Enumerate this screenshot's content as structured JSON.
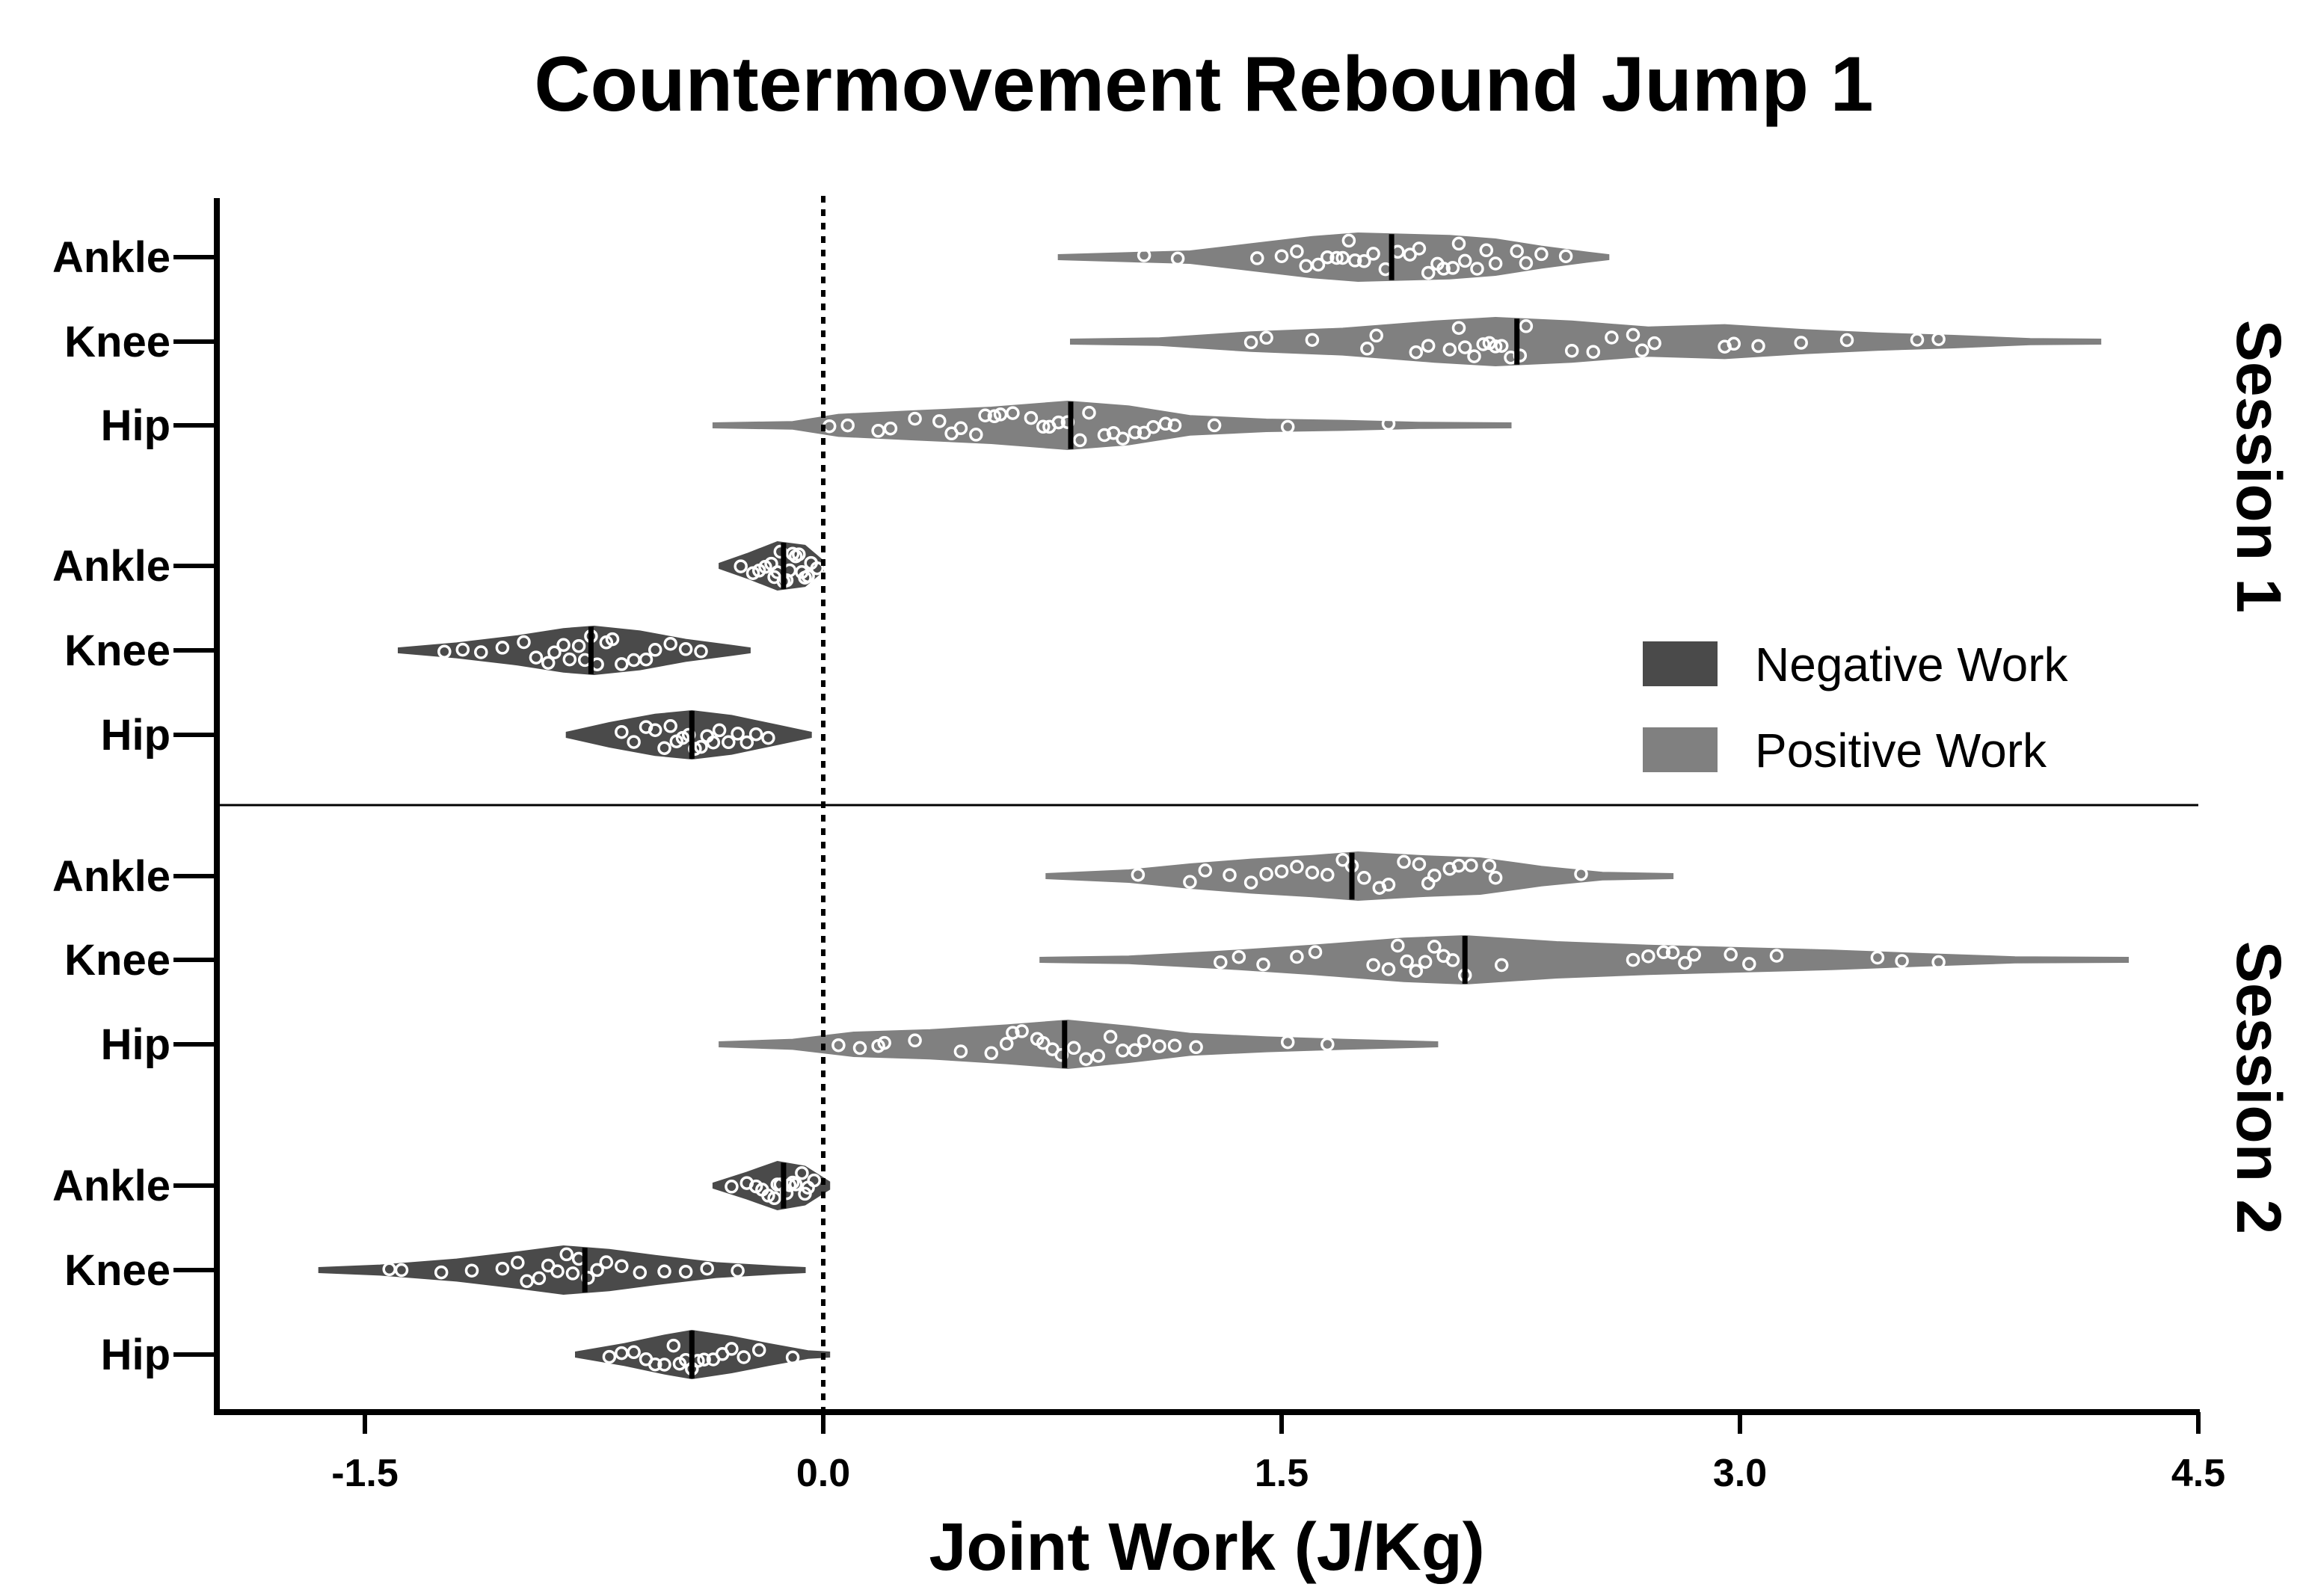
{
  "chart_data": {
    "type": "violin",
    "title": "Countermovement Rebound Jump 1",
    "xlabel": "Joint Work (J/Kg)",
    "xlim": [
      -2.0,
      4.5
    ],
    "xticks": [
      -1.5,
      0.0,
      1.5,
      3.0,
      4.5
    ],
    "xtick_labels": [
      "-1.5",
      "0.0",
      "1.5",
      "3.0",
      "4.5"
    ],
    "reference_line_x": 0.0,
    "reference_line_style": "dotted",
    "legend": {
      "placement": "right",
      "entries": [
        {
          "label": "Negative Work",
          "color": "#4a4a4a"
        },
        {
          "label": "Positive Work",
          "color": "#808080"
        }
      ]
    },
    "colors": {
      "negative": "#4a4a4a",
      "positive": "#808080",
      "points": "#ffffff",
      "median": "#000000"
    },
    "panels": [
      {
        "label": "Session 1",
        "groups": [
          {
            "joint": "Ankle",
            "work": "positive",
            "min": 0.77,
            "max": 2.57,
            "median": 1.86,
            "density": [
              [
                0.77,
                0.08
              ],
              [
                1.0,
                0.18
              ],
              [
                1.2,
                0.25
              ],
              [
                1.4,
                0.55
              ],
              [
                1.6,
                0.85
              ],
              [
                1.75,
                1.0
              ],
              [
                1.9,
                0.95
              ],
              [
                2.05,
                0.9
              ],
              [
                2.2,
                0.75
              ],
              [
                2.35,
                0.45
              ],
              [
                2.5,
                0.2
              ],
              [
                2.57,
                0.06
              ]
            ],
            "points": [
              1.05,
              1.16,
              1.42,
              1.5,
              1.55,
              1.58,
              1.62,
              1.65,
              1.68,
              1.7,
              1.72,
              1.74,
              1.77,
              1.8,
              1.84,
              1.88,
              1.92,
              1.95,
              1.98,
              2.01,
              2.03,
              2.06,
              2.08,
              2.1,
              2.14,
              2.17,
              2.2,
              2.27,
              2.3,
              2.35,
              2.43
            ]
          },
          {
            "joint": "Knee",
            "work": "positive",
            "min": 0.81,
            "max": 4.18,
            "median": 2.27,
            "density": [
              [
                0.81,
                0.05
              ],
              [
                1.1,
                0.15
              ],
              [
                1.4,
                0.4
              ],
              [
                1.7,
                0.55
              ],
              [
                2.0,
                0.85
              ],
              [
                2.2,
                1.0
              ],
              [
                2.45,
                0.85
              ],
              [
                2.7,
                0.6
              ],
              [
                2.95,
                0.7
              ],
              [
                3.2,
                0.5
              ],
              [
                3.45,
                0.35
              ],
              [
                3.7,
                0.25
              ],
              [
                3.95,
                0.12
              ],
              [
                4.18,
                0.04
              ]
            ],
            "points": [
              1.4,
              1.45,
              1.6,
              1.78,
              1.81,
              1.94,
              1.98,
              2.05,
              2.08,
              2.1,
              2.13,
              2.16,
              2.18,
              2.2,
              2.22,
              2.25,
              2.28,
              2.3,
              2.45,
              2.52,
              2.58,
              2.65,
              2.68,
              2.72,
              2.95,
              2.98,
              3.06,
              3.2,
              3.35,
              3.58,
              3.65
            ]
          },
          {
            "joint": "Hip",
            "work": "positive",
            "min": -0.36,
            "max": 2.25,
            "median": 0.81,
            "density": [
              [
                -0.36,
                0.05
              ],
              [
                -0.1,
                0.15
              ],
              [
                0.05,
                0.45
              ],
              [
                0.3,
                0.6
              ],
              [
                0.55,
                0.75
              ],
              [
                0.8,
                1.0
              ],
              [
                1.0,
                0.8
              ],
              [
                1.2,
                0.4
              ],
              [
                1.45,
                0.25
              ],
              [
                1.7,
                0.2
              ],
              [
                1.95,
                0.12
              ],
              [
                2.25,
                0.04
              ]
            ],
            "points": [
              0.02,
              0.08,
              0.18,
              0.22,
              0.3,
              0.38,
              0.42,
              0.45,
              0.5,
              0.53,
              0.56,
              0.58,
              0.62,
              0.68,
              0.72,
              0.74,
              0.77,
              0.8,
              0.84,
              0.87,
              0.92,
              0.95,
              0.98,
              1.02,
              1.05,
              1.08,
              1.12,
              1.15,
              1.28,
              1.52,
              1.85
            ]
          },
          {
            "joint": "Ankle",
            "work": "negative",
            "min": -0.34,
            "max": 0.0,
            "median": -0.13,
            "density": [
              [
                -0.34,
                0.1
              ],
              [
                -0.25,
                0.5
              ],
              [
                -0.15,
                1.0
              ],
              [
                -0.06,
                0.85
              ],
              [
                0.0,
                0.2
              ]
            ],
            "points": [
              -0.27,
              -0.23,
              -0.21,
              -0.19,
              -0.17,
              -0.16,
              -0.15,
              -0.14,
              -0.13,
              -0.12,
              -0.11,
              -0.1,
              -0.09,
              -0.08,
              -0.07,
              -0.06,
              -0.05,
              -0.04,
              -0.02
            ]
          },
          {
            "joint": "Knee",
            "work": "negative",
            "min": -1.39,
            "max": -0.24,
            "median": -0.76,
            "density": [
              [
                -1.39,
                0.08
              ],
              [
                -1.2,
                0.3
              ],
              [
                -1.0,
                0.6
              ],
              [
                -0.85,
                0.9
              ],
              [
                -0.75,
                1.0
              ],
              [
                -0.6,
                0.8
              ],
              [
                -0.45,
                0.45
              ],
              [
                -0.3,
                0.2
              ],
              [
                -0.24,
                0.06
              ]
            ],
            "points": [
              -1.24,
              -1.18,
              -1.12,
              -1.05,
              -0.98,
              -0.94,
              -0.9,
              -0.88,
              -0.85,
              -0.83,
              -0.8,
              -0.78,
              -0.76,
              -0.74,
              -0.71,
              -0.69,
              -0.66,
              -0.62,
              -0.58,
              -0.55,
              -0.5,
              -0.45,
              -0.4
            ]
          },
          {
            "joint": "Hip",
            "work": "negative",
            "min": -0.84,
            "max": -0.04,
            "median": -0.43,
            "density": [
              [
                -0.84,
                0.1
              ],
              [
                -0.7,
                0.5
              ],
              [
                -0.55,
                0.85
              ],
              [
                -0.43,
                1.0
              ],
              [
                -0.3,
                0.8
              ],
              [
                -0.15,
                0.4
              ],
              [
                -0.04,
                0.1
              ]
            ],
            "points": [
              -0.66,
              -0.62,
              -0.58,
              -0.55,
              -0.52,
              -0.5,
              -0.48,
              -0.46,
              -0.44,
              -0.42,
              -0.4,
              -0.38,
              -0.36,
              -0.34,
              -0.31,
              -0.28,
              -0.25,
              -0.22,
              -0.18
            ]
          }
        ]
      },
      {
        "label": "Session 2",
        "groups": [
          {
            "joint": "Ankle",
            "work": "positive",
            "min": 0.73,
            "max": 2.78,
            "median": 1.73,
            "density": [
              [
                0.73,
                0.06
              ],
              [
                1.0,
                0.25
              ],
              [
                1.2,
                0.5
              ],
              [
                1.4,
                0.7
              ],
              [
                1.6,
                0.85
              ],
              [
                1.75,
                1.0
              ],
              [
                1.95,
                0.85
              ],
              [
                2.15,
                0.75
              ],
              [
                2.35,
                0.4
              ],
              [
                2.55,
                0.15
              ],
              [
                2.78,
                0.04
              ]
            ],
            "points": [
              1.03,
              1.2,
              1.25,
              1.33,
              1.4,
              1.45,
              1.5,
              1.55,
              1.6,
              1.65,
              1.7,
              1.73,
              1.77,
              1.82,
              1.85,
              1.9,
              1.95,
              1.98,
              2.0,
              2.05,
              2.08,
              2.12,
              2.18,
              2.2,
              2.48
            ]
          },
          {
            "joint": "Knee",
            "work": "positive",
            "min": 0.71,
            "max": 4.27,
            "median": 2.1,
            "density": [
              [
                0.71,
                0.05
              ],
              [
                1.0,
                0.15
              ],
              [
                1.3,
                0.35
              ],
              [
                1.6,
                0.6
              ],
              [
                1.9,
                0.9
              ],
              [
                2.1,
                1.0
              ],
              [
                2.4,
                0.75
              ],
              [
                2.7,
                0.6
              ],
              [
                3.0,
                0.5
              ],
              [
                3.3,
                0.4
              ],
              [
                3.6,
                0.25
              ],
              [
                3.9,
                0.12
              ],
              [
                4.27,
                0.04
              ]
            ],
            "points": [
              1.3,
              1.36,
              1.44,
              1.55,
              1.61,
              1.8,
              1.85,
              1.88,
              1.91,
              1.94,
              1.97,
              2.0,
              2.03,
              2.06,
              2.1,
              2.22,
              2.65,
              2.7,
              2.75,
              2.78,
              2.82,
              2.85,
              2.97,
              3.03,
              3.12,
              3.45,
              3.53,
              3.65
            ]
          },
          {
            "joint": "Hip",
            "work": "positive",
            "min": -0.34,
            "max": 2.01,
            "median": 0.79,
            "density": [
              [
                -0.34,
                0.05
              ],
              [
                -0.1,
                0.2
              ],
              [
                0.1,
                0.5
              ],
              [
                0.35,
                0.6
              ],
              [
                0.6,
                0.8
              ],
              [
                0.8,
                1.0
              ],
              [
                1.0,
                0.75
              ],
              [
                1.2,
                0.45
              ],
              [
                1.45,
                0.3
              ],
              [
                1.7,
                0.2
              ],
              [
                2.01,
                0.04
              ]
            ],
            "points": [
              0.05,
              0.12,
              0.18,
              0.2,
              0.3,
              0.45,
              0.55,
              0.6,
              0.62,
              0.65,
              0.7,
              0.72,
              0.75,
              0.78,
              0.82,
              0.86,
              0.9,
              0.94,
              0.98,
              1.02,
              1.05,
              1.1,
              1.15,
              1.22,
              1.52,
              1.65
            ]
          },
          {
            "joint": "Ankle",
            "work": "negative",
            "min": -0.36,
            "max": 0.02,
            "median": -0.13,
            "density": [
              [
                -0.36,
                0.1
              ],
              [
                -0.25,
                0.55
              ],
              [
                -0.15,
                1.0
              ],
              [
                -0.06,
                0.8
              ],
              [
                0.02,
                0.15
              ]
            ],
            "points": [
              -0.3,
              -0.25,
              -0.22,
              -0.2,
              -0.18,
              -0.16,
              -0.15,
              -0.14,
              -0.12,
              -0.11,
              -0.1,
              -0.09,
              -0.07,
              -0.06,
              -0.05,
              -0.03
            ]
          },
          {
            "joint": "Knee",
            "work": "negative",
            "min": -1.65,
            "max": -0.06,
            "median": -0.78,
            "density": [
              [
                -1.65,
                0.05
              ],
              [
                -1.45,
                0.2
              ],
              [
                -1.2,
                0.45
              ],
              [
                -1.0,
                0.75
              ],
              [
                -0.85,
                1.0
              ],
              [
                -0.7,
                0.85
              ],
              [
                -0.55,
                0.6
              ],
              [
                -0.35,
                0.3
              ],
              [
                -0.15,
                0.15
              ],
              [
                -0.06,
                0.05
              ]
            ],
            "points": [
              -1.42,
              -1.38,
              -1.25,
              -1.15,
              -1.05,
              -1.0,
              -0.97,
              -0.93,
              -0.9,
              -0.87,
              -0.84,
              -0.82,
              -0.8,
              -0.77,
              -0.74,
              -0.71,
              -0.66,
              -0.6,
              -0.52,
              -0.45,
              -0.38,
              -0.28
            ]
          },
          {
            "joint": "Hip",
            "work": "negative",
            "min": -0.81,
            "max": 0.02,
            "median": -0.43,
            "density": [
              [
                -0.81,
                0.1
              ],
              [
                -0.65,
                0.45
              ],
              [
                -0.52,
                0.8
              ],
              [
                -0.43,
                1.0
              ],
              [
                -0.3,
                0.75
              ],
              [
                -0.18,
                0.45
              ],
              [
                -0.05,
                0.15
              ],
              [
                0.02,
                0.04
              ]
            ],
            "points": [
              -0.7,
              -0.66,
              -0.62,
              -0.58,
              -0.55,
              -0.52,
              -0.49,
              -0.47,
              -0.45,
              -0.43,
              -0.41,
              -0.39,
              -0.36,
              -0.33,
              -0.3,
              -0.26,
              -0.21,
              -0.1
            ]
          }
        ]
      }
    ]
  }
}
